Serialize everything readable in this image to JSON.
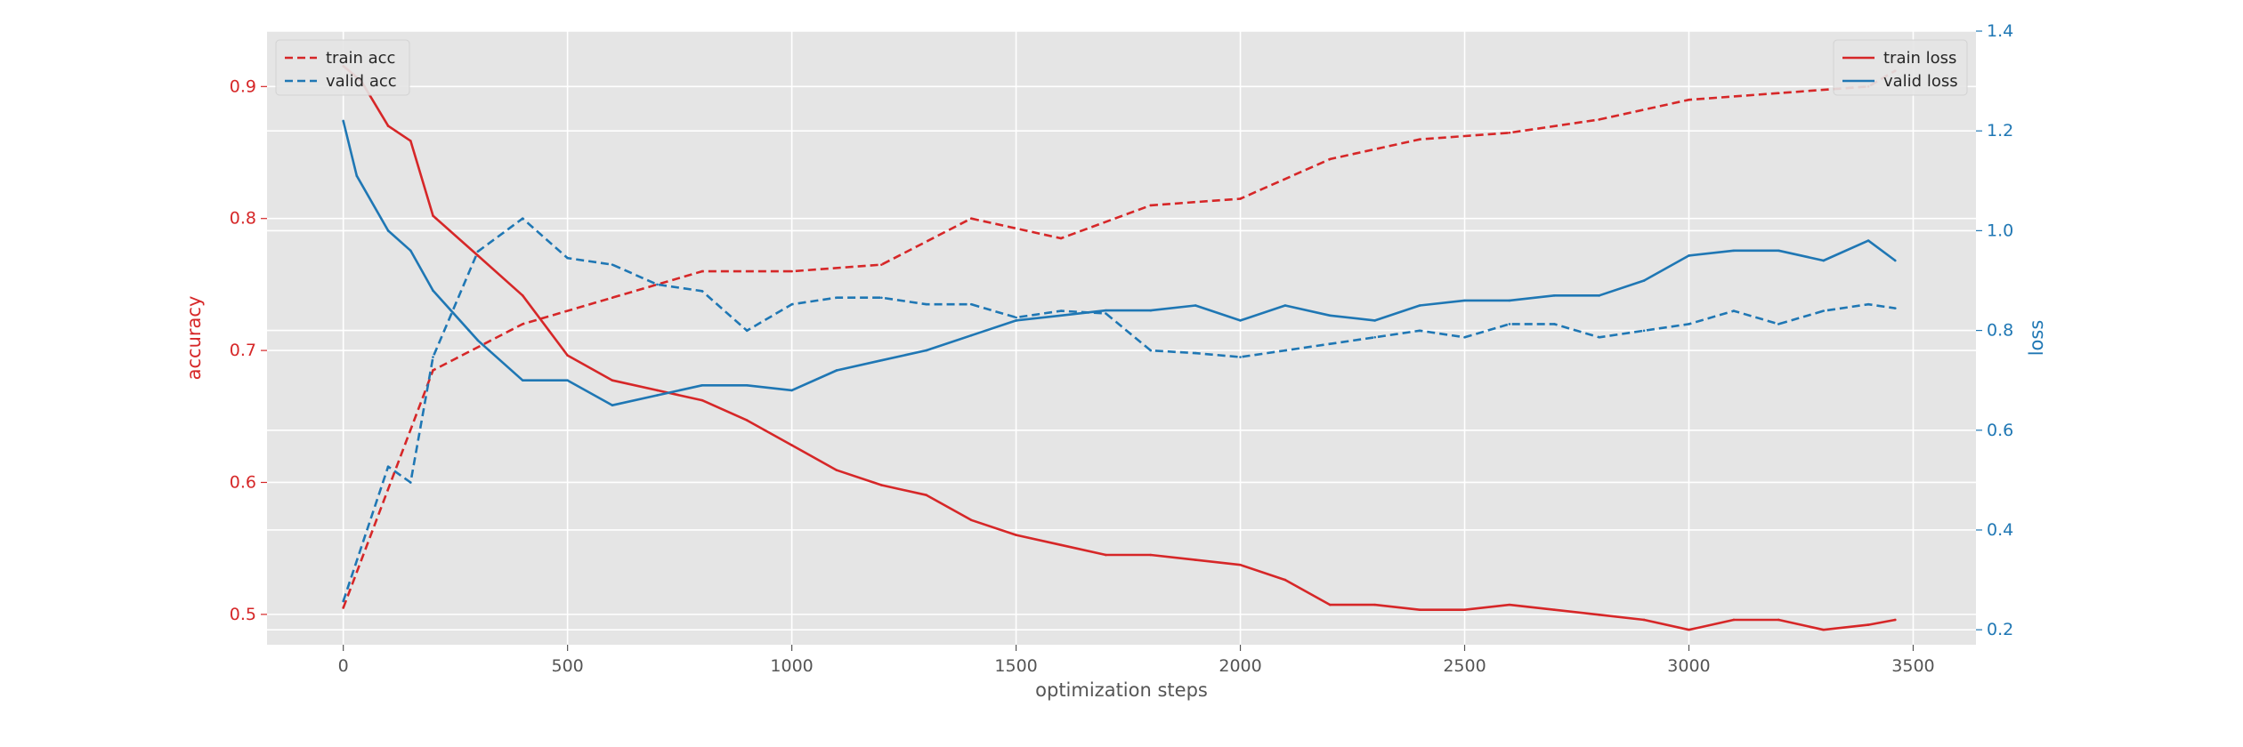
{
  "chart_data": {
    "type": "line",
    "title": "",
    "xlabel": "optimization steps",
    "ylabel_left": "accuracy",
    "ylabel_right": "loss",
    "xlim": [
      -170,
      3640
    ],
    "ylim_left": [
      0.477,
      0.942
    ],
    "ylim_right": [
      0.17,
      1.4
    ],
    "x_ticks": [
      "0",
      "500",
      "1000",
      "1500",
      "2000",
      "2500",
      "3000",
      "3500"
    ],
    "y_left_ticks": [
      "0.5",
      "0.6",
      "0.7",
      "0.8",
      "0.9"
    ],
    "y_right_ticks": [
      "0.2",
      "0.4",
      "0.6",
      "0.8",
      "1.0",
      "1.2",
      "1.4"
    ],
    "grid": true,
    "colors": {
      "red": "#d62728",
      "blue": "#1f77b4",
      "plot_bg": "#e5e5e5",
      "grid": "#ffffff",
      "text": "#555555"
    },
    "legend_left": {
      "placement": "top-left",
      "entries": [
        "train acc",
        "valid acc"
      ]
    },
    "legend_right": {
      "placement": "top-right",
      "entries": [
        "train loss",
        "valid loss"
      ]
    },
    "series": [
      {
        "name": "train acc",
        "axis": "left",
        "color": "#d62728",
        "style": "dashed",
        "x": [
          0,
          200,
          400,
          600,
          800,
          1000,
          1200,
          1400,
          1600,
          1800,
          2000,
          2200,
          2400,
          2600,
          2800,
          3000,
          3200,
          3400,
          3460
        ],
        "y": [
          0.505,
          0.685,
          0.72,
          0.74,
          0.76,
          0.76,
          0.765,
          0.8,
          0.785,
          0.81,
          0.815,
          0.845,
          0.86,
          0.865,
          0.875,
          0.89,
          0.895,
          0.9,
          0.912
        ]
      },
      {
        "name": "valid acc",
        "axis": "left",
        "color": "#1f77b4",
        "style": "dashed",
        "x": [
          0,
          100,
          150,
          200,
          300,
          400,
          500,
          600,
          700,
          800,
          900,
          1000,
          1100,
          1200,
          1300,
          1400,
          1500,
          1600,
          1700,
          1800,
          1900,
          2000,
          2100,
          2200,
          2300,
          2400,
          2500,
          2600,
          2700,
          2800,
          2900,
          3000,
          3100,
          3200,
          3300,
          3400,
          3460
        ],
        "y": [
          0.51,
          0.612,
          0.6,
          0.695,
          0.775,
          0.8,
          0.77,
          0.765,
          0.75,
          0.745,
          0.715,
          0.735,
          0.74,
          0.74,
          0.735,
          0.735,
          0.725,
          0.73,
          0.728,
          0.7,
          0.698,
          0.695,
          0.7,
          0.705,
          0.71,
          0.715,
          0.71,
          0.72,
          0.72,
          0.71,
          0.715,
          0.72,
          0.73,
          0.72,
          0.73,
          0.735,
          0.732
        ]
      },
      {
        "name": "train loss",
        "axis": "right",
        "color": "#d62728",
        "style": "solid",
        "x": [
          0,
          40,
          100,
          150,
          200,
          300,
          400,
          500,
          600,
          700,
          800,
          900,
          1000,
          1100,
          1200,
          1300,
          1400,
          1500,
          1600,
          1700,
          1800,
          1900,
          2000,
          2100,
          2200,
          2300,
          2400,
          2500,
          2600,
          2700,
          2800,
          2900,
          3000,
          3100,
          3200,
          3300,
          3400,
          3460
        ],
        "y": [
          1.33,
          1.3,
          1.21,
          1.18,
          1.03,
          0.95,
          0.87,
          0.75,
          0.7,
          0.68,
          0.66,
          0.62,
          0.57,
          0.52,
          0.49,
          0.47,
          0.42,
          0.39,
          0.37,
          0.35,
          0.35,
          0.34,
          0.33,
          0.3,
          0.25,
          0.25,
          0.24,
          0.24,
          0.25,
          0.24,
          0.23,
          0.22,
          0.2,
          0.22,
          0.22,
          0.2,
          0.21,
          0.22
        ]
      },
      {
        "name": "valid loss",
        "axis": "right",
        "color": "#1f77b4",
        "style": "solid",
        "x": [
          0,
          30,
          100,
          150,
          200,
          300,
          400,
          500,
          600,
          700,
          800,
          900,
          1000,
          1100,
          1200,
          1300,
          1400,
          1500,
          1600,
          1700,
          1800,
          1900,
          2000,
          2100,
          2200,
          2300,
          2400,
          2500,
          2600,
          2700,
          2800,
          2900,
          3000,
          3100,
          3200,
          3300,
          3400,
          3460
        ],
        "y": [
          1.22,
          1.11,
          1.0,
          0.96,
          0.88,
          0.78,
          0.7,
          0.7,
          0.65,
          0.67,
          0.69,
          0.69,
          0.68,
          0.72,
          0.74,
          0.76,
          0.79,
          0.82,
          0.83,
          0.84,
          0.84,
          0.85,
          0.82,
          0.85,
          0.83,
          0.82,
          0.85,
          0.86,
          0.86,
          0.87,
          0.87,
          0.9,
          0.95,
          0.96,
          0.96,
          0.94,
          0.98,
          0.94
        ]
      }
    ]
  }
}
